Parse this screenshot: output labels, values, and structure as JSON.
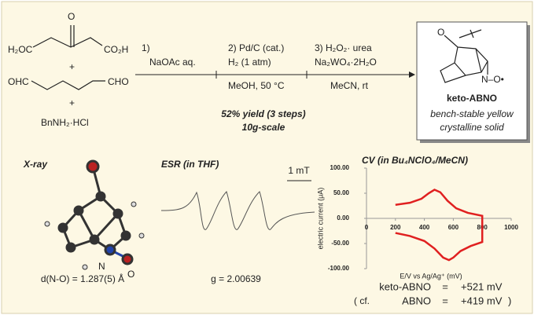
{
  "scheme": {
    "reactants": {
      "diacid_left": "H₂OC",
      "diacid_o": "O",
      "diacid_right": "CO₂H",
      "plus1": "+",
      "dial_left": "OHC",
      "dial_right": "CHO",
      "plus2": "+",
      "amine": "BnNH₂·HCl"
    },
    "steps": [
      {
        "lines": [
          "1)",
          "NaOAc aq."
        ]
      },
      {
        "lines": [
          "2) Pd/C (cat.)",
          "H₂ (1 atm)",
          "MeOH, 50 °C"
        ]
      },
      {
        "lines": [
          "3) H₂O₂· urea",
          "Na₂WO₄·2H₂O",
          "MeCN, rt"
        ]
      }
    ],
    "yield": "52% yield (3 steps)",
    "scale": "10g-scale",
    "product": {
      "o_label": "O",
      "no_label": "N–O•",
      "name": "keto-ABNO",
      "desc1": "bench-stable yellow",
      "desc2": "crystalline solid"
    }
  },
  "xray": {
    "title": "X-ray",
    "n_label": "N",
    "o_label": "O",
    "bond": "d(N-O) = 1.287(5) Å"
  },
  "esr": {
    "title": "ESR (in THF)",
    "scale_bar": "1 mT",
    "g_value": "g = 2.00639"
  },
  "cv": {
    "title": "CV (in Bu₄NClO₄/MeCN)",
    "chart_data": {
      "type": "line",
      "x_label": "E/V vs Ag/Ag⁺ (mV)",
      "y_label": "electric current (μA)",
      "xlim": [
        0,
        1000
      ],
      "ylim": [
        -100,
        100
      ],
      "xticks": [
        0,
        200,
        400,
        600,
        800,
        1000
      ],
      "yticks": [
        {
          "value": 100,
          "label": "100.00"
        },
        {
          "value": 50,
          "label": "50.00"
        },
        {
          "value": 0,
          "label": "0.00"
        },
        {
          "value": -50,
          "label": "-50.00"
        },
        {
          "value": -100,
          "label": "-100.00"
        }
      ],
      "series": [
        {
          "color": "#e02020",
          "x": [
            200,
            300,
            380,
            430,
            470,
            510,
            560,
            620,
            700,
            800,
            800,
            720,
            650,
            600,
            570,
            530,
            470,
            400,
            300,
            200
          ],
          "values": [
            27,
            31,
            39,
            50,
            57,
            52,
            35,
            20,
            11,
            5,
            -47,
            -55,
            -65,
            -78,
            -83,
            -78,
            -60,
            -45,
            -35,
            -29
          ]
        }
      ]
    },
    "results": [
      {
        "prefix": "",
        "name": "keto-ABNO",
        "eq": "=",
        "value": "+521 mV",
        "suffix": ""
      },
      {
        "prefix": "( cf.",
        "name": "ABNO",
        "eq": "=",
        "value": "+419 mV",
        "suffix": ")"
      }
    ]
  }
}
